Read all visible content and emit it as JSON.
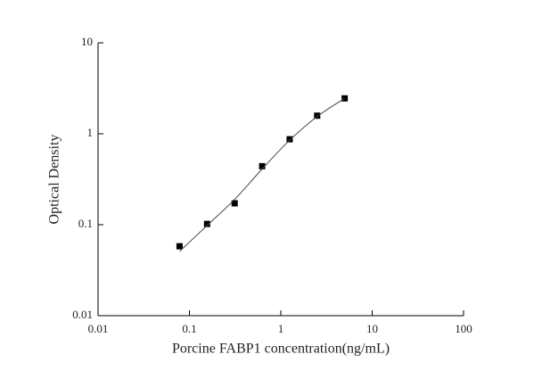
{
  "chart_data": {
    "type": "scatter",
    "xlabel": "Porcine FABP1 concentration(ng/mL)",
    "ylabel": "Optical Density",
    "xscale": "log",
    "yscale": "log",
    "xlim": [
      0.01,
      100
    ],
    "ylim": [
      0.01,
      10
    ],
    "xticks": [
      0.01,
      0.1,
      1,
      10,
      100
    ],
    "yticks": [
      0.01,
      0.1,
      1,
      10
    ],
    "series": [
      {
        "type": "scatter",
        "color": "#000000",
        "x": [
          0.078,
          0.156,
          0.3125,
          0.625,
          1.25,
          2.5,
          5
        ],
        "values": [
          0.058,
          0.102,
          0.172,
          0.44,
          0.87,
          1.58,
          2.45
        ]
      },
      {
        "type": "line",
        "color": "#444444",
        "x": [
          0.078,
          0.156,
          0.3125,
          0.625,
          1.25,
          2.5,
          5
        ],
        "values": [
          0.051,
          0.098,
          0.19,
          0.41,
          0.85,
          1.55,
          2.45
        ]
      }
    ]
  }
}
